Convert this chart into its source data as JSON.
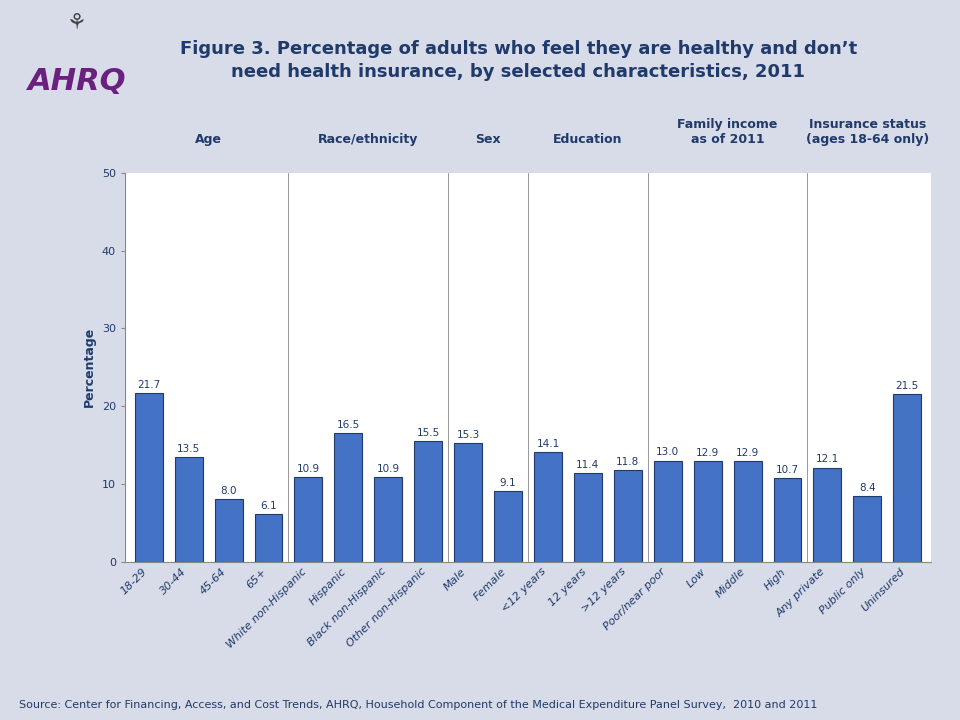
{
  "title": "Figure 3. Percentage of adults who feel they are healthy and don’t\nneed health insurance, by selected characteristics, 2011",
  "ylabel": "Percentage",
  "source": "Source: Center for Financing, Access, and Cost Trends, AHRQ, Household Component of the Medical Expenditure Panel Survey,  2010 and 2011",
  "ylim": [
    0,
    50
  ],
  "yticks": [
    0,
    10,
    20,
    30,
    40,
    50
  ],
  "bar_color": "#4472C4",
  "bar_edge_color": "#1F3A6B",
  "categories": [
    "18-29",
    "30-44",
    "45-64",
    "65+",
    "White non-Hispanic",
    "Hispanic",
    "Black non-Hispanic",
    "Other non-Hispanic",
    "Male",
    "Female",
    "<12 years",
    "12 years",
    ">12 years",
    "Poor/near poor",
    "Low",
    "Middle",
    "High",
    "Any private",
    "Public only",
    "Uninsured"
  ],
  "values": [
    21.7,
    13.5,
    8.0,
    6.1,
    10.9,
    16.5,
    10.9,
    15.5,
    15.3,
    9.1,
    14.1,
    11.4,
    11.8,
    13.0,
    12.9,
    12.9,
    10.7,
    12.1,
    8.4,
    21.5
  ],
  "group_labels": [
    "Age",
    "Race/ethnicity",
    "Sex",
    "Education",
    "Family income\nas of 2011",
    "Insurance status\n(ages 18-64 only)"
  ],
  "group_center_indices": [
    1.5,
    5.5,
    8.5,
    11.0,
    14.5,
    18.0
  ],
  "title_color": "#1F3A6B",
  "axis_label_color": "#1F3A6B",
  "tick_label_color": "#1F3A6B",
  "group_label_color": "#1F3A6B",
  "bg_color": "#D8DCE8",
  "plot_bg": "#FFFFFF",
  "header_bg": "#C8CCD8",
  "title_fontsize": 13,
  "group_label_fontsize": 9,
  "tick_fontsize": 8,
  "value_fontsize": 7.5,
  "source_fontsize": 8,
  "ylabel_fontsize": 9,
  "separator_color": "#888888",
  "line_color": "#B08080",
  "ahrq_text": "AHRQ",
  "ahrq_color": "#6B2080",
  "hhs_color": "#444444"
}
